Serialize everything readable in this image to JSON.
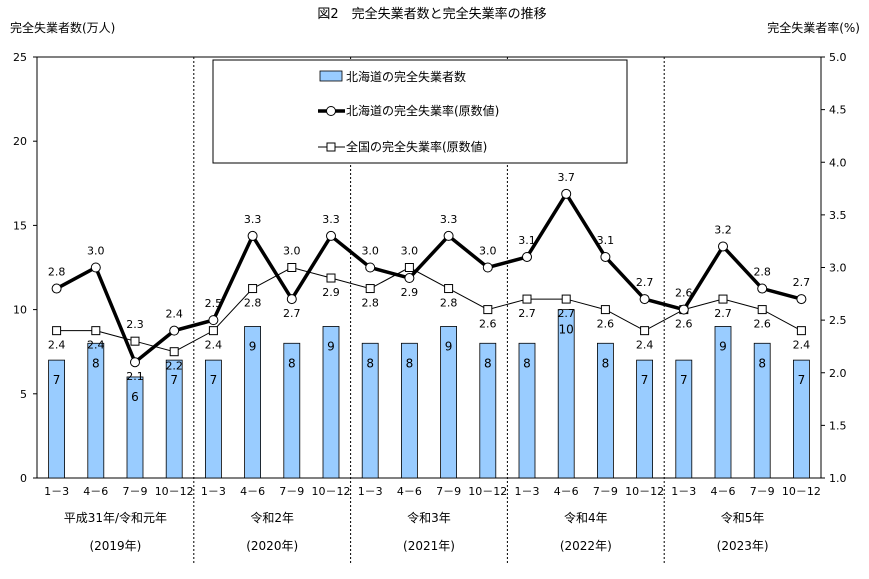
{
  "chart_data": {
    "type": "bar+line",
    "title": "図2　完全失業者数と完全失業率の推移",
    "ylabel_left": "完全失業者数(万人)",
    "ylabel_right": "完全失業者率(%)",
    "ylim_left": [
      0,
      25
    ],
    "yticks_left": [
      "0",
      "5",
      "10",
      "15",
      "20",
      "25"
    ],
    "ylim_right": [
      1.0,
      5.0
    ],
    "yticks_right": [
      "1.0",
      "1.5",
      "2.0",
      "2.5",
      "3.0",
      "3.5",
      "4.0",
      "4.5",
      "5.0"
    ],
    "categories": [
      "1-3",
      "4-6",
      "7-9",
      "10-12",
      "1-3",
      "4-6",
      "7-9",
      "10-12",
      "1-3",
      "4-6",
      "7-9",
      "10-12",
      "1-3",
      "4-6",
      "7-9",
      "10-12",
      "1-3",
      "4-6",
      "7-9",
      "10-12"
    ],
    "year_groups": [
      {
        "label": "平成31年/令和元年",
        "sub": "(2019年)"
      },
      {
        "label": "令和2年",
        "sub": "(2020年)"
      },
      {
        "label": "令和3年",
        "sub": "(2021年)"
      },
      {
        "label": "令和4年",
        "sub": "(2022年)"
      },
      {
        "label": "令和5年",
        "sub": "(2023年)"
      }
    ],
    "legend_position": "top-center",
    "series": [
      {
        "name": "北海道の完全失業者数",
        "type": "bar",
        "axis": "left",
        "color": "#99ccff",
        "values": [
          7,
          8,
          6,
          7,
          7,
          9,
          8,
          9,
          8,
          8,
          9,
          8,
          8,
          10,
          8,
          7,
          7,
          9,
          8,
          7
        ]
      },
      {
        "name": "北海道の完全失業率(原数値)",
        "type": "line",
        "axis": "right",
        "color": "#000000",
        "values": [
          2.8,
          3.0,
          2.1,
          2.4,
          2.5,
          3.3,
          2.7,
          3.3,
          3.0,
          2.9,
          3.3,
          3.0,
          3.1,
          3.7,
          3.1,
          2.7,
          2.6,
          3.2,
          2.8,
          2.7
        ]
      },
      {
        "name": "全国の完全失業率(原数値)",
        "type": "line",
        "axis": "right",
        "color": "#000000",
        "values": [
          2.4,
          2.4,
          2.3,
          2.2,
          2.4,
          2.8,
          3.0,
          2.9,
          2.8,
          3.0,
          2.8,
          2.6,
          2.7,
          2.7,
          2.6,
          2.4,
          2.6,
          2.7,
          2.6,
          2.4
        ]
      }
    ]
  }
}
